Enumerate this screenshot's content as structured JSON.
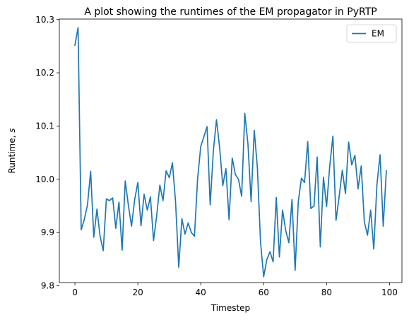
{
  "chart_data": {
    "type": "line",
    "title": "A plot showing the runtimes of the EM propagator in PyRTP",
    "xlabel": "Timestep",
    "ylabel": "Runtime, s",
    "ylabel_main": "Runtime, ",
    "ylabel_unit": "s",
    "xlim": [
      -4.95,
      103.95
    ],
    "ylim": [
      9.806,
      10.301
    ],
    "xticks": [
      0,
      20,
      40,
      60,
      80,
      100
    ],
    "yticks": [
      9.8,
      9.9,
      10.0,
      10.1,
      10.2,
      10.3
    ],
    "ytick_labels": [
      "9.8",
      "9.9",
      "10.0",
      "10.1",
      "10.2",
      "10.3"
    ],
    "grid": false,
    "legend_position": "upper right",
    "series": [
      {
        "name": "EM",
        "color": "#1f77b4",
        "x": [
          0,
          1,
          2,
          3,
          4,
          5,
          6,
          7,
          8,
          9,
          10,
          11,
          12,
          13,
          14,
          15,
          16,
          17,
          18,
          19,
          20,
          21,
          22,
          23,
          24,
          25,
          26,
          27,
          28,
          29,
          30,
          31,
          32,
          33,
          34,
          35,
          36,
          37,
          38,
          39,
          40,
          41,
          42,
          43,
          44,
          45,
          46,
          47,
          48,
          49,
          50,
          51,
          52,
          53,
          54,
          55,
          56,
          57,
          58,
          59,
          60,
          61,
          62,
          63,
          64,
          65,
          66,
          67,
          68,
          69,
          70,
          71,
          72,
          73,
          74,
          75,
          76,
          77,
          78,
          79,
          80,
          81,
          82,
          83,
          84,
          85,
          86,
          87,
          88,
          89,
          90,
          91,
          92,
          93,
          94,
          95,
          96,
          97,
          98,
          99
        ],
        "y": [
          10.252,
          10.285,
          9.905,
          9.925,
          9.952,
          10.015,
          9.891,
          9.944,
          9.893,
          9.866,
          9.963,
          9.96,
          9.965,
          9.908,
          9.957,
          9.867,
          9.997,
          9.951,
          9.912,
          9.962,
          9.994,
          9.913,
          9.972,
          9.942,
          9.967,
          9.885,
          9.932,
          9.989,
          9.96,
          10.016,
          10.003,
          10.031,
          9.957,
          9.835,
          9.926,
          9.897,
          9.918,
          9.9,
          9.893,
          10.001,
          10.062,
          10.08,
          10.099,
          9.952,
          10.053,
          10.112,
          10.06,
          9.988,
          10.02,
          9.924,
          10.04,
          10.009,
          10.0,
          9.968,
          10.124,
          10.067,
          9.958,
          10.092,
          10.022,
          9.882,
          9.817,
          9.849,
          9.864,
          9.845,
          9.966,
          9.854,
          9.942,
          9.904,
          9.881,
          9.962,
          9.829,
          9.958,
          10.002,
          9.994,
          10.071,
          9.945,
          9.95,
          10.042,
          9.873,
          10.004,
          9.949,
          10.025,
          10.081,
          9.923,
          9.968,
          10.017,
          9.973,
          10.07,
          10.027,
          10.045,
          9.982,
          10.025,
          9.92,
          9.895,
          9.942,
          9.869,
          9.99,
          10.046,
          9.912,
          10.016
        ]
      }
    ]
  }
}
